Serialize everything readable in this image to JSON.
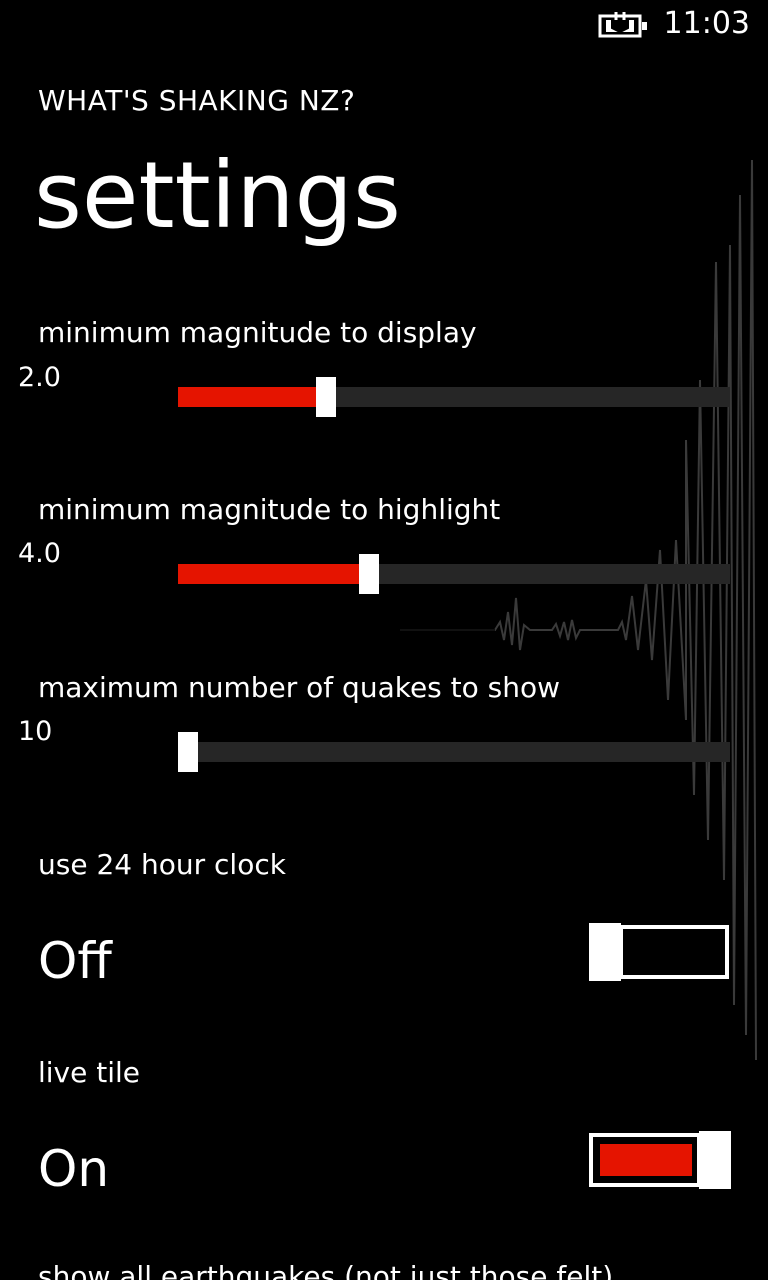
{
  "status_bar": {
    "time": "11:03",
    "battery_icon": "battery-charging-icon"
  },
  "app_title": "WHAT'S SHAKING NZ?",
  "page_title": "settings",
  "sliders": [
    {
      "label": "minimum magnitude to display",
      "value_text": "2.0",
      "fraction": 0.26
    },
    {
      "label": "minimum magnitude to highlight",
      "value_text": "4.0",
      "fraction": 0.34
    },
    {
      "label": "maximum number of quakes to show",
      "value_text": "10",
      "fraction": 0.0
    }
  ],
  "toggles": [
    {
      "label": "use 24 hour clock",
      "state_text": "Off",
      "on": false
    },
    {
      "label": "live tile",
      "state_text": "On",
      "on": true
    }
  ],
  "partial_label": "show all earthquakes (not just those felt)",
  "colors": {
    "accent": "#e51400",
    "background": "#000000",
    "track": "#262626",
    "foreground": "#ffffff"
  }
}
